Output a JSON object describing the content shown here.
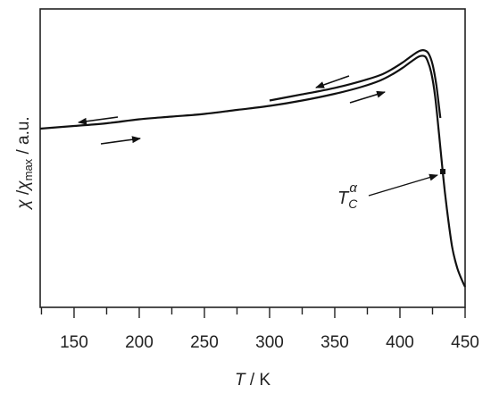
{
  "chart_data": {
    "type": "line",
    "title": "",
    "xlabel_var": "T",
    "xlabel_unit": " / K",
    "ylabel_parts": {
      "chi": "χ",
      "sep": " /",
      "chi2": "χ",
      "sub": "max",
      "unit": " / a.u."
    },
    "xlim": [
      124,
      450
    ],
    "ylim": [
      0,
      1.0
    ],
    "y_ticks_shown": false,
    "x_ticks": [
      150,
      200,
      250,
      300,
      350,
      400,
      450
    ],
    "x_tick_labels": [
      "150",
      "200",
      "250",
      "300",
      "350",
      "400",
      "450"
    ],
    "series": [
      {
        "direction": "heating",
        "x": [
          124,
          150,
          175,
          200,
          225,
          250,
          275,
          300,
          325,
          350,
          370,
          385,
          395,
          403,
          410,
          415,
          419,
          421,
          424,
          427,
          430,
          433,
          436,
          440,
          444,
          448,
          450
        ],
        "y": [
          0.62,
          0.63,
          0.64,
          0.655,
          0.665,
          0.675,
          0.69,
          0.705,
          0.725,
          0.75,
          0.775,
          0.8,
          0.825,
          0.85,
          0.875,
          0.89,
          0.89,
          0.875,
          0.83,
          0.74,
          0.6,
          0.45,
          0.32,
          0.18,
          0.1,
          0.05,
          0.03
        ]
      },
      {
        "direction": "cooling",
        "x": [
          300,
          325,
          350,
          370,
          385,
          395,
          403,
          410,
          415,
          419,
          422,
          425,
          428,
          431
        ],
        "y": [
          0.725,
          0.748,
          0.772,
          0.797,
          0.82,
          0.845,
          0.87,
          0.895,
          0.91,
          0.912,
          0.9,
          0.86,
          0.78,
          0.66
        ]
      }
    ],
    "annotations": {
      "tc_label_main": "T",
      "tc_label_sub": "C",
      "tc_label_sup": "α",
      "tc_x": 434,
      "tc_y": 0.45
    }
  }
}
